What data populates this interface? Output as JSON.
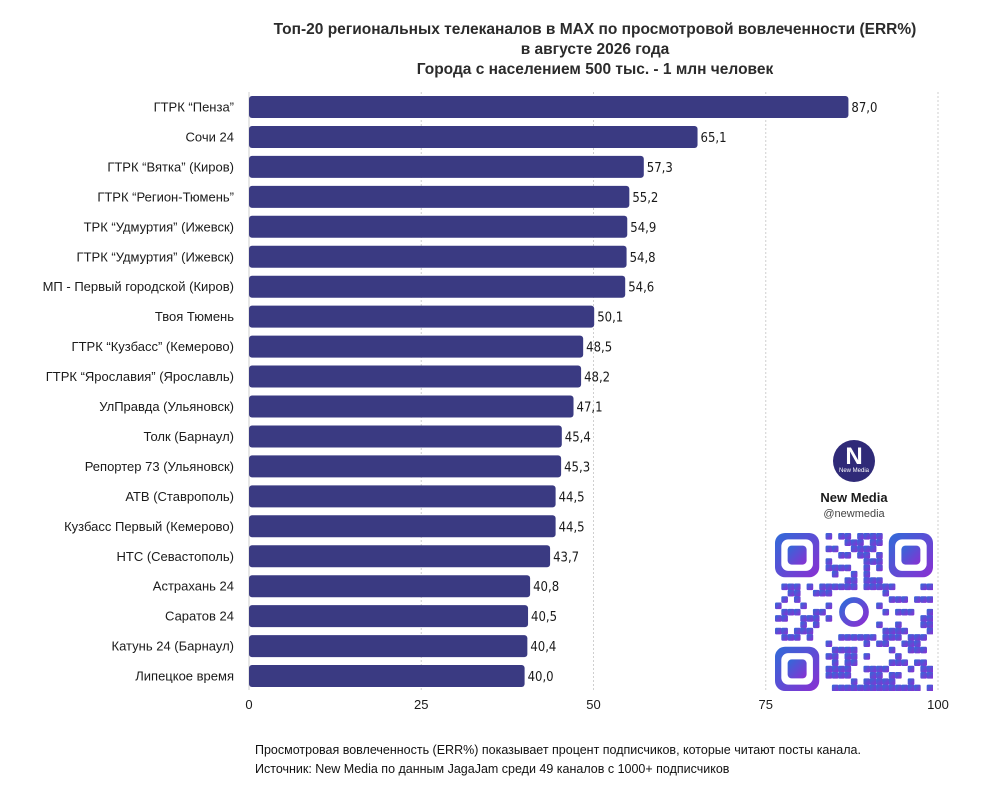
{
  "titles": {
    "line1": "Топ-20 региональных телеканалов в MAX по просмотровой вовлеченности (ERR%)",
    "line2": "в августе 2026 года",
    "line3": "Города с населением 500 тыс. - 1 млн человек"
  },
  "colors": {
    "bar": "#3a3a82",
    "grid": "#cfcfcf",
    "qr_start": "#2f6bd8",
    "qr_end": "#8a2fd2"
  },
  "chart_data": {
    "type": "bar",
    "orientation": "horizontal",
    "title": "Топ-20 региональных телеканалов в MAX по просмотровой вовлеченности (ERR%)",
    "categories": [
      "ГТРК “Пенза”",
      "Сочи 24",
      "ГТРК “Вятка” (Киров)",
      "ГТРК “Регион-Тюмень”",
      "ТРК “Удмуртия” (Ижевск)",
      "ГТРК “Удмуртия” (Ижевск)",
      "МП - Первый городской (Киров)",
      "Твоя Тюмень",
      "ГТРК “Кузбасс” (Кемерово)",
      "ГТРК “Ярославия” (Ярославль)",
      "УлПравда (Ульяновск)",
      "Толк (Барнаул)",
      "Репортер 73 (Ульяновск)",
      "АТВ (Ставрополь)",
      "Кузбасс Первый (Кемерово)",
      "НТС (Севастополь)",
      "Астрахань 24",
      "Саратов 24",
      "Катунь 24 (Барнаул)",
      "Липецкое время"
    ],
    "values": [
      87.0,
      65.1,
      57.3,
      55.2,
      54.9,
      54.8,
      54.6,
      50.1,
      48.5,
      48.2,
      47.1,
      45.4,
      45.3,
      44.5,
      44.5,
      43.7,
      40.8,
      40.5,
      40.4,
      40.0
    ],
    "value_labels": [
      "87,0",
      "65,1",
      "57,3",
      "55,2",
      "54,9",
      "54,8",
      "54,6",
      "50,1",
      "48,5",
      "48,2",
      "47,1",
      "45,4",
      "45,3",
      "44,5",
      "44,5",
      "43,7",
      "40,8",
      "40,5",
      "40,4",
      "40,0"
    ],
    "xlim": [
      0,
      100
    ],
    "xticks": [
      0,
      25,
      50,
      75,
      100
    ],
    "grid": true
  },
  "brand": {
    "logo_letter": "N",
    "logo_text": "New Media",
    "name": "New Media",
    "handle": "@newmedia"
  },
  "footnote": {
    "line1": "Просмотровая вовлеченность (ERR%) показывает процент подписчиков, которые читают посты канала.",
    "line2": "Источник: New Media по данным JagaJam среди 49 каналов с 1000+ подписчиков"
  }
}
